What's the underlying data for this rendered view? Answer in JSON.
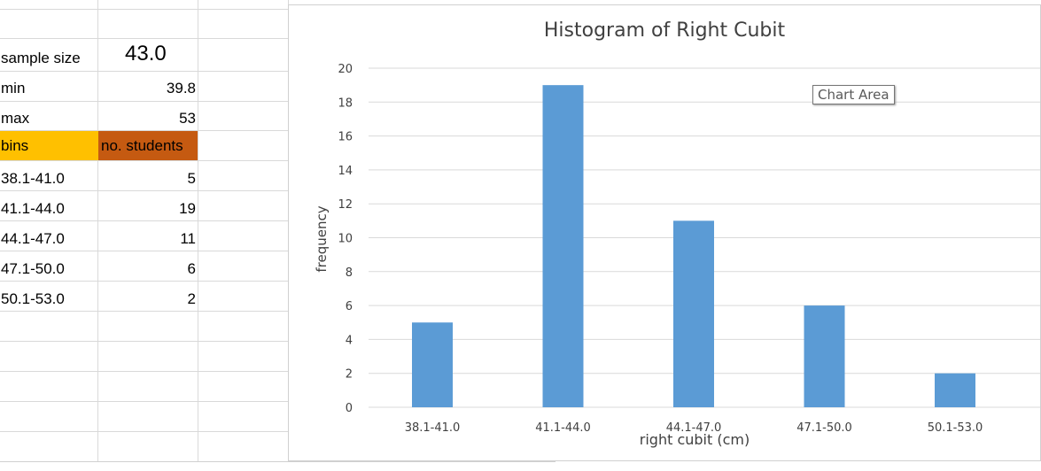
{
  "sheet": {
    "rows": [
      {
        "label": "sample size",
        "value": "43.0"
      },
      {
        "label": "min",
        "value": "39.8"
      },
      {
        "label": "max",
        "value": "53"
      }
    ],
    "header": {
      "bins": "bins",
      "students": "no. students"
    },
    "bins": [
      {
        "label": "38.1-41.0",
        "value": "5"
      },
      {
        "label": "41.1-44.0",
        "value": "19"
      },
      {
        "label": "44.1-47.0",
        "value": "11"
      },
      {
        "label": "47.1-50.0",
        "value": "6"
      },
      {
        "label": "50.1-53.0",
        "value": "2"
      }
    ],
    "colors": {
      "bins_header": "#ffc000",
      "students_header": "#c55a11"
    }
  },
  "tooltip": "Chart Area",
  "chart_data": {
    "type": "bar",
    "title": "Histogram of Right Cubit",
    "xlabel": "right cubit (cm)",
    "ylabel": "frequency",
    "categories": [
      "38.1-41.0",
      "41.1-44.0",
      "44.1-47.0",
      "47.1-50.0",
      "50.1-53.0"
    ],
    "values": [
      5,
      19,
      11,
      6,
      2
    ],
    "ylim": [
      0,
      20
    ],
    "yticks": [
      "0",
      "2",
      "4",
      "6",
      "8",
      "10",
      "12",
      "14",
      "16",
      "18",
      "20"
    ],
    "grid": true,
    "bar_color": "#5b9bd5"
  }
}
